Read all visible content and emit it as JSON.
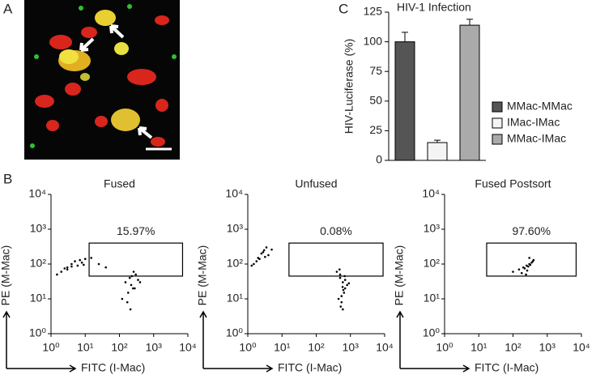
{
  "panel_labels": [
    "A",
    "B",
    "C"
  ],
  "chart_data": [
    {
      "type": "bar",
      "title": "HIV-1 Infection",
      "ylabel": "HIV-Luciferase (%)",
      "categories": [
        null
      ],
      "ylim": [
        0,
        125
      ],
      "yticks": [
        0,
        25,
        50,
        75,
        100,
        125
      ],
      "legend": "right",
      "series": [
        {
          "name": "MMac-MMac",
          "color": "#555555",
          "values": [
            100
          ],
          "errors": [
            8
          ]
        },
        {
          "name": "IMac-IMac",
          "color": "#f4f4f4",
          "values": [
            15
          ],
          "errors": [
            2
          ]
        },
        {
          "name": "MMac-IMac",
          "color": "#aaaaaa",
          "values": [
            114
          ],
          "errors": [
            5
          ]
        }
      ]
    },
    {
      "type": "scatter",
      "title": "Fused",
      "xlabel": "FITC (I-Mac)",
      "ylabel": "PE (M-Mac)",
      "xscale": "log",
      "yscale": "log",
      "xlim": [
        1,
        10000
      ],
      "ylim": [
        1,
        10000
      ],
      "xticks": [
        {
          "value": 1,
          "label": "10⁰"
        },
        {
          "value": 10,
          "label": "10¹"
        },
        {
          "value": 100,
          "label": "10²"
        },
        {
          "value": 1000,
          "label": "10³"
        },
        {
          "value": 10000,
          "label": "10⁴"
        }
      ],
      "yticks": [
        {
          "value": 1,
          "label": "10⁰"
        },
        {
          "value": 10,
          "label": "10¹"
        },
        {
          "value": 100,
          "label": "10²"
        },
        {
          "value": 1000,
          "label": "10³"
        },
        {
          "value": 10000,
          "label": "10⁴"
        }
      ],
      "color": "#000000",
      "x": [
        2,
        3,
        4,
        5,
        6,
        8,
        3,
        1.5,
        2.5,
        7,
        10,
        15,
        25,
        40,
        9,
        4,
        150,
        200,
        250,
        300,
        180,
        220,
        350,
        120,
        260,
        400,
        170,
        230,
        280,
        210
      ],
      "y": [
        60,
        80,
        100,
        120,
        90,
        110,
        70,
        50,
        75,
        130,
        140,
        150,
        100,
        80,
        95,
        85,
        30,
        40,
        20,
        50,
        15,
        25,
        35,
        10,
        60,
        30,
        8,
        45,
        20,
        5
      ],
      "gate": {
        "x": [
          13,
          7000
        ],
        "y": [
          45,
          400
        ],
        "label": "15.97%"
      }
    },
    {
      "type": "scatter",
      "title": "Unfused",
      "xlabel": "FITC (I-Mac)",
      "ylabel": "PE (M-Mac)",
      "xscale": "log",
      "yscale": "log",
      "xlim": [
        1,
        10000
      ],
      "ylim": [
        1,
        10000
      ],
      "xticks": [
        {
          "value": 1,
          "label": "10⁰"
        },
        {
          "value": 10,
          "label": "10¹"
        },
        {
          "value": 100,
          "label": "10²"
        },
        {
          "value": 1000,
          "label": "10³"
        },
        {
          "value": 10000,
          "label": "10⁴"
        }
      ],
      "yticks": [
        {
          "value": 1,
          "label": "10⁰"
        },
        {
          "value": 10,
          "label": "10¹"
        },
        {
          "value": 100,
          "label": "10²"
        },
        {
          "value": 1000,
          "label": "10³"
        },
        {
          "value": 10000,
          "label": "10⁴"
        }
      ],
      "color": "#000000",
      "x": [
        1.5,
        2,
        2.5,
        3,
        3.5,
        4,
        1.8,
        2.2,
        2.8,
        5,
        1.3,
        3.2,
        400,
        500,
        600,
        700,
        450,
        550,
        650,
        800,
        500,
        600,
        700,
        550,
        620,
        480,
        680,
        520,
        590,
        900
      ],
      "y": [
        100,
        150,
        200,
        250,
        300,
        180,
        120,
        140,
        220,
        260,
        90,
        160,
        60,
        40,
        30,
        20,
        10,
        8,
        15,
        25,
        50,
        5,
        35,
        12,
        18,
        70,
        45,
        6,
        22,
        28
      ],
      "gate": {
        "x": [
          16,
          9000
        ],
        "y": [
          45,
          400
        ],
        "label": "0.08%"
      }
    },
    {
      "type": "scatter",
      "title": "Fused Postsort",
      "xlabel": "FITC (I-Mac)",
      "ylabel": "PE (M-Mac)",
      "xscale": "log",
      "yscale": "log",
      "xlim": [
        1,
        10000
      ],
      "ylim": [
        1,
        10000
      ],
      "xticks": [
        {
          "value": 1,
          "label": "10⁰"
        },
        {
          "value": 10,
          "label": "10¹"
        },
        {
          "value": 100,
          "label": "10²"
        },
        {
          "value": 1000,
          "label": "10³"
        },
        {
          "value": 10000,
          "label": "10⁴"
        }
      ],
      "yticks": [
        {
          "value": 1,
          "label": "10⁰"
        },
        {
          "value": 10,
          "label": "10¹"
        },
        {
          "value": 100,
          "label": "10²"
        },
        {
          "value": 1000,
          "label": "10³"
        },
        {
          "value": 10000,
          "label": "10⁴"
        }
      ],
      "color": "#000000",
      "x": [
        100,
        150,
        200,
        250,
        300,
        350,
        400,
        180,
        220,
        280,
        320,
        380,
        260,
        300,
        240
      ],
      "y": [
        60,
        70,
        80,
        90,
        100,
        110,
        130,
        55,
        75,
        85,
        95,
        120,
        65,
        150,
        50
      ],
      "gate": {
        "x": [
          17,
          7000
        ],
        "y": [
          45,
          400
        ],
        "label": "97.60%"
      }
    }
  ]
}
